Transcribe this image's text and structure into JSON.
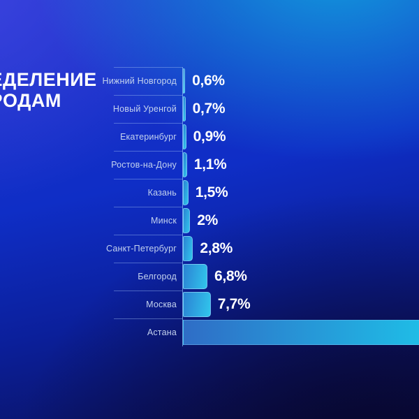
{
  "title": {
    "line1_cropped_fragment": "Е",
    "line1_visible": "ДЕЛЕНИЕ",
    "line2_cropped_fragment": "Р",
    "line2_visible": "ОДАМ"
  },
  "chart_data": {
    "type": "bar",
    "orientation": "horizontal",
    "categories": [
      "Нижний Новгород",
      "Новый Уренгой",
      "Екатеринбург",
      "Ростов-на-Дону",
      "Казань",
      "Минск",
      "Санкт-Петербург",
      "Белгород",
      "Москва",
      "Астана"
    ],
    "values": [
      0.6,
      0.7,
      0.9,
      1.1,
      1.5,
      2,
      2.8,
      6.8,
      7.7,
      null
    ],
    "value_labels": [
      "0,6%",
      "0,7%",
      "0,9%",
      "1,1%",
      "1,5%",
      "2%",
      "2,8%",
      "6,8%",
      "7,7%",
      ""
    ],
    "notes": "Title and last bar are cropped by image edges; Астана bar runs past right edge with no visible value label",
    "legend": "none",
    "grid": "short row separator lines in label gutter; vertical baseline axis"
  },
  "colors": {
    "bar_gradient_start": "#2b82d4",
    "bar_gradient_end": "#31c6ec",
    "astana_bar_start": "#2f6dc6",
    "astana_bar_end": "#1fbce6",
    "city_label": "#c3d2ee",
    "value_label": "#ffffff",
    "axis_line": "#7fb3ea",
    "bg_top_right": "#0b85d0",
    "bg_left": "#2737c9",
    "bg_center": "#0e2ec4",
    "bg_bottom": "#0a0c42"
  }
}
